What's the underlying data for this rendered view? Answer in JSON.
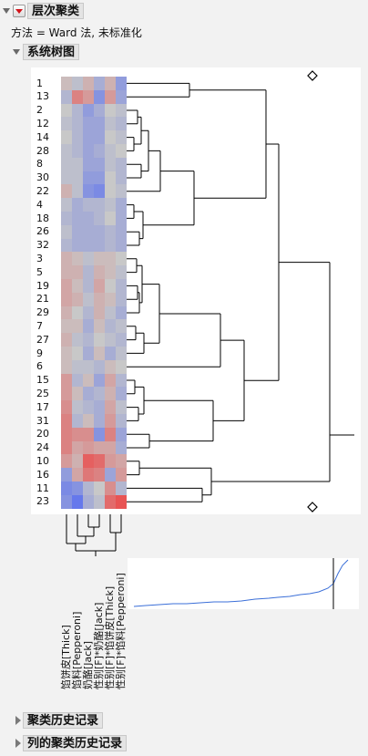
{
  "report": {
    "title": "层次聚类",
    "method_text": "方法 = Ward 法, 未标准化"
  },
  "dendrogram_section": {
    "title": "系统树图",
    "row_labels": [
      "1",
      "13",
      "2",
      "12",
      "14",
      "28",
      "8",
      "30",
      "22",
      "4",
      "18",
      "26",
      "32",
      "3",
      "5",
      "19",
      "21",
      "29",
      "7",
      "27",
      "9",
      "6",
      "15",
      "25",
      "17",
      "31",
      "20",
      "24",
      "10",
      "16",
      "11",
      "23"
    ],
    "column_labels": [
      "馅饼皮[Thick]",
      "馅料[Pepperoni]",
      "奶酪[Jack]",
      "性别[F]*奶酪[Jack]",
      "性别[F]*馅饼皮[Thick]",
      "性别[F]*馅料[Pepperoni]"
    ],
    "heatmap_colors": {
      "red": "#e85454",
      "blue": "#5a6ff0",
      "neutral": "#c8c8c8"
    },
    "heatmap_values": [
      [
        0.1,
        -0.1,
        0.2,
        -0.3,
        0.2,
        -0.5
      ],
      [
        -0.2,
        0.6,
        0.4,
        -0.6,
        0.4,
        -0.4
      ],
      [
        0.0,
        -0.2,
        -0.5,
        -0.3,
        0.0,
        -0.1
      ],
      [
        -0.1,
        -0.2,
        -0.4,
        -0.4,
        -0.1,
        -0.2
      ],
      [
        0.0,
        -0.2,
        -0.4,
        -0.4,
        0.0,
        -0.1
      ],
      [
        -0.1,
        -0.2,
        -0.4,
        -0.3,
        -0.1,
        0.0
      ],
      [
        -0.1,
        -0.1,
        -0.4,
        -0.4,
        -0.1,
        -0.2
      ],
      [
        -0.1,
        -0.1,
        -0.5,
        -0.5,
        0.0,
        -0.2
      ],
      [
        0.2,
        -0.1,
        -0.6,
        -0.7,
        0.0,
        -0.1
      ],
      [
        -0.1,
        -0.3,
        -0.2,
        -0.2,
        -0.1,
        -0.3
      ],
      [
        -0.2,
        -0.3,
        -0.3,
        -0.2,
        0.0,
        -0.3
      ],
      [
        -0.1,
        -0.3,
        -0.3,
        -0.3,
        -0.2,
        -0.3
      ],
      [
        -0.2,
        -0.3,
        -0.3,
        -0.3,
        -0.2,
        -0.3
      ],
      [
        0.2,
        0.1,
        -0.1,
        0.1,
        0.1,
        0.0
      ],
      [
        0.2,
        0.2,
        -0.2,
        0.2,
        0.1,
        -0.1
      ],
      [
        0.3,
        0.1,
        -0.2,
        0.3,
        0.0,
        -0.2
      ],
      [
        0.3,
        0.2,
        -0.1,
        0.2,
        0.1,
        -0.2
      ],
      [
        0.2,
        0.0,
        -0.2,
        0.2,
        -0.1,
        -0.3
      ],
      [
        0.1,
        0.1,
        -0.3,
        0.1,
        -0.2,
        -0.1
      ],
      [
        0.2,
        -0.1,
        -0.2,
        0.0,
        -0.1,
        -0.2
      ],
      [
        0.1,
        0.0,
        -0.3,
        0.1,
        -0.3,
        -0.1
      ],
      [
        0.1,
        -0.1,
        -0.1,
        -0.2,
        0.1,
        0.0
      ],
      [
        0.4,
        -0.2,
        0.1,
        -0.4,
        0.3,
        -0.2
      ],
      [
        0.4,
        0.1,
        -0.3,
        -0.2,
        0.2,
        -0.3
      ],
      [
        0.5,
        -0.1,
        -0.2,
        -0.3,
        0.3,
        -0.1
      ],
      [
        0.6,
        -0.2,
        0.1,
        -0.3,
        0.4,
        -0.2
      ],
      [
        0.6,
        0.5,
        0.5,
        -0.6,
        0.6,
        -0.4
      ],
      [
        0.6,
        0.3,
        0.4,
        0.3,
        0.3,
        -0.3
      ],
      [
        0.4,
        0.2,
        0.9,
        0.8,
        0.4,
        0.3
      ],
      [
        -0.5,
        0.3,
        0.7,
        0.6,
        -0.4,
        0.4
      ],
      [
        -0.7,
        -0.6,
        -0.2,
        0.0,
        0.5,
        -0.2
      ],
      [
        -0.6,
        -0.9,
        -0.3,
        -0.1,
        0.8,
        1.0
      ]
    ]
  },
  "collapsed_sections": [
    {
      "title": "聚类历史记录"
    },
    {
      "title": "列的聚类历史记录"
    }
  ]
}
